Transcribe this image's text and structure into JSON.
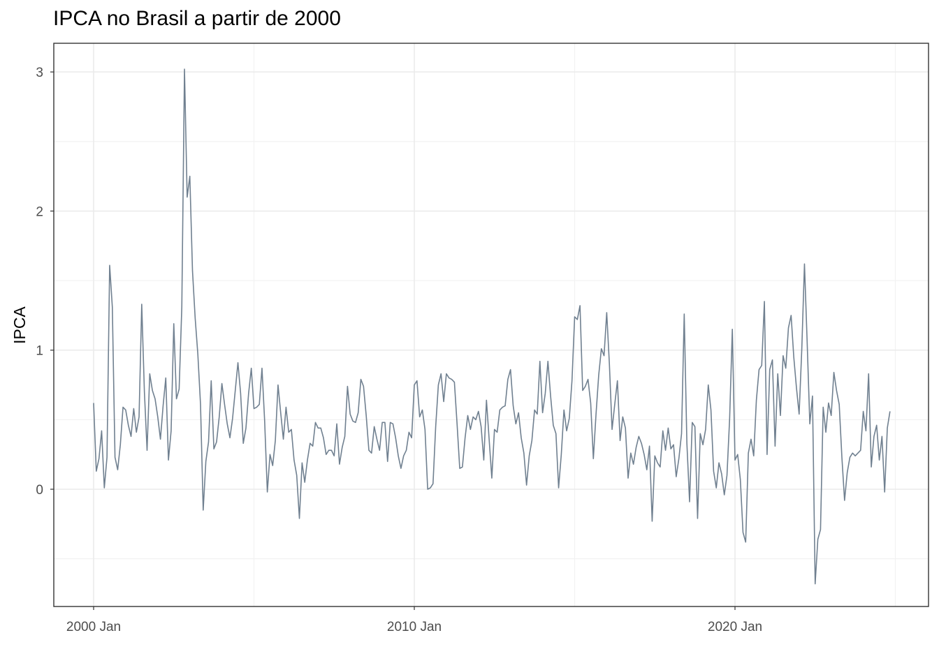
{
  "chart_data": {
    "type": "line",
    "title": "IPCA no Brasil a partir de 2000",
    "xlabel": "",
    "ylabel": "IPCA",
    "x_start": "2000-01",
    "x_frequency": "monthly",
    "x_ticks": [
      "2000 Jan",
      "2010 Jan",
      "2020 Jan"
    ],
    "y_ticks": [
      "0",
      "1",
      "2",
      "3"
    ],
    "ylim": [
      -0.85,
      3.2
    ],
    "grid": true,
    "line_color": "#708090",
    "series": [
      {
        "values": [
          0.62,
          0.13,
          0.22,
          0.42,
          0.01,
          0.23,
          1.61,
          1.31,
          0.23,
          0.14,
          0.32,
          0.59,
          0.57,
          0.46,
          0.38,
          0.58,
          0.41,
          0.52,
          1.33,
          0.7,
          0.28,
          0.83,
          0.71,
          0.65,
          0.52,
          0.36,
          0.6,
          0.8,
          0.21,
          0.42,
          1.19,
          0.65,
          0.72,
          1.31,
          3.02,
          2.1,
          2.25,
          1.57,
          1.23,
          0.97,
          0.61,
          -0.15,
          0.2,
          0.34,
          0.78,
          0.29,
          0.34,
          0.52,
          0.76,
          0.61,
          0.47,
          0.37,
          0.51,
          0.71,
          0.91,
          0.69,
          0.33,
          0.44,
          0.69,
          0.87,
          0.58,
          0.59,
          0.61,
          0.87,
          0.49,
          -0.02,
          0.25,
          0.17,
          0.35,
          0.75,
          0.55,
          0.36,
          0.59,
          0.41,
          0.43,
          0.21,
          0.1,
          -0.21,
          0.19,
          0.05,
          0.21,
          0.33,
          0.31,
          0.48,
          0.44,
          0.44,
          0.37,
          0.25,
          0.28,
          0.28,
          0.24,
          0.47,
          0.18,
          0.3,
          0.38,
          0.74,
          0.54,
          0.49,
          0.48,
          0.55,
          0.79,
          0.74,
          0.53,
          0.28,
          0.26,
          0.45,
          0.36,
          0.28,
          0.48,
          0.48,
          0.2,
          0.48,
          0.47,
          0.37,
          0.24,
          0.15,
          0.24,
          0.28,
          0.41,
          0.37,
          0.75,
          0.78,
          0.52,
          0.57,
          0.43,
          0.0,
          0.01,
          0.04,
          0.45,
          0.75,
          0.83,
          0.63,
          0.83,
          0.8,
          0.79,
          0.77,
          0.47,
          0.15,
          0.16,
          0.37,
          0.53,
          0.43,
          0.52,
          0.5,
          0.56,
          0.45,
          0.21,
          0.64,
          0.36,
          0.08,
          0.43,
          0.41,
          0.57,
          0.59,
          0.6,
          0.79,
          0.86,
          0.6,
          0.47,
          0.55,
          0.37,
          0.26,
          0.03,
          0.24,
          0.35,
          0.57,
          0.54,
          0.92,
          0.55,
          0.69,
          0.92,
          0.67,
          0.46,
          0.4,
          0.01,
          0.25,
          0.57,
          0.42,
          0.51,
          0.78,
          1.24,
          1.22,
          1.32,
          0.71,
          0.74,
          0.79,
          0.62,
          0.22,
          0.54,
          0.82,
          1.01,
          0.96,
          1.27,
          0.9,
          0.43,
          0.61,
          0.78,
          0.35,
          0.52,
          0.44,
          0.08,
          0.26,
          0.18,
          0.3,
          0.38,
          0.33,
          0.25,
          0.14,
          0.31,
          -0.23,
          0.24,
          0.19,
          0.16,
          0.42,
          0.28,
          0.44,
          0.29,
          0.32,
          0.09,
          0.22,
          0.4,
          1.26,
          0.33,
          -0.09,
          0.48,
          0.45,
          -0.21,
          0.4,
          0.32,
          0.43,
          0.75,
          0.57,
          0.13,
          0.01,
          0.19,
          0.11,
          -0.04,
          0.1,
          0.51,
          1.15,
          0.21,
          0.25,
          0.07,
          -0.31,
          -0.38,
          0.26,
          0.36,
          0.24,
          0.64,
          0.86,
          0.89,
          1.35,
          0.25,
          0.86,
          0.93,
          0.31,
          0.83,
          0.53,
          0.96,
          0.87,
          1.16,
          1.25,
          0.95,
          0.73,
          0.54,
          1.01,
          1.62,
          1.06,
          0.47,
          0.67,
          -0.68,
          -0.36,
          -0.29,
          0.59,
          0.41,
          0.62,
          0.53,
          0.84,
          0.71,
          0.61,
          0.23,
          -0.08,
          0.12,
          0.23,
          0.26,
          0.24,
          0.26,
          0.28,
          0.56,
          0.42,
          0.83,
          0.16,
          0.38,
          0.46,
          0.21,
          0.38,
          -0.02,
          0.44,
          0.56
        ]
      }
    ]
  }
}
